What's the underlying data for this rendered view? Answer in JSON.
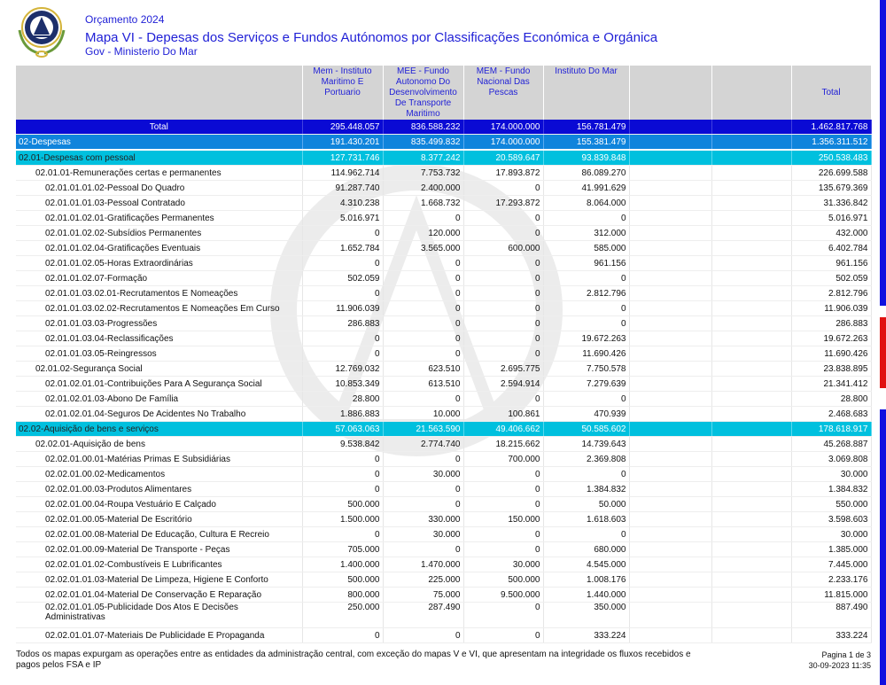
{
  "header": {
    "year": "Orçamento 2024",
    "title": "Mapa VI - Depesas dos Serviços e Fundos Autónomos por Classificações Económica e Orgánica",
    "subtitle": "Gov - Ministerio Do Mar"
  },
  "columns": [
    "",
    "Mem - Instituto Maritimo E Portuario",
    "MEE - Fundo Autonomo Do Desenvolvimento De Transporte Maritimo",
    "MEM - Fundo Nacional Das Pescas",
    "Instituto Do Mar",
    "",
    "",
    "Total"
  ],
  "rows": [
    {
      "level": 0,
      "label": "Total",
      "values": [
        "295.448.057",
        "836.588.232",
        "174.000.000",
        "156.781.479",
        "",
        "",
        "1.462.817.768"
      ]
    },
    {
      "level": 1,
      "label": "02-Despesas",
      "values": [
        "191.430.201",
        "835.499.832",
        "174.000.000",
        "155.381.479",
        "",
        "",
        "1.356.311.512"
      ]
    },
    {
      "level": 2,
      "label": "02.01-Despesas com pessoal",
      "values": [
        "127.731.746",
        "8.377.242",
        "20.589.647",
        "93.839.848",
        "",
        "",
        "250.538.483"
      ]
    },
    {
      "level": 3,
      "label": "02.01.01-Remunerações certas e permanentes",
      "values": [
        "114.962.714",
        "7.753.732",
        "17.893.872",
        "86.089.270",
        "",
        "",
        "226.699.588"
      ]
    },
    {
      "level": 4,
      "label": "02.01.01.01.02-Pessoal Do Quadro",
      "values": [
        "91.287.740",
        "2.400.000",
        "0",
        "41.991.629",
        "",
        "",
        "135.679.369"
      ]
    },
    {
      "level": 4,
      "label": "02.01.01.01.03-Pessoal Contratado",
      "values": [
        "4.310.238",
        "1.668.732",
        "17.293.872",
        "8.064.000",
        "",
        "",
        "31.336.842"
      ]
    },
    {
      "level": 4,
      "label": "02.01.01.02.01-Gratificações Permanentes",
      "values": [
        "5.016.971",
        "0",
        "0",
        "0",
        "",
        "",
        "5.016.971"
      ]
    },
    {
      "level": 4,
      "label": "02.01.01.02.02-Subsídios Permanentes",
      "values": [
        "0",
        "120.000",
        "0",
        "312.000",
        "",
        "",
        "432.000"
      ]
    },
    {
      "level": 4,
      "label": "02.01.01.02.04-Gratificações Eventuais",
      "values": [
        "1.652.784",
        "3.565.000",
        "600.000",
        "585.000",
        "",
        "",
        "6.402.784"
      ]
    },
    {
      "level": 4,
      "label": "02.01.01.02.05-Horas Extraordinárias",
      "values": [
        "0",
        "0",
        "0",
        "961.156",
        "",
        "",
        "961.156"
      ]
    },
    {
      "level": 4,
      "label": "02.01.01.02.07-Formação",
      "values": [
        "502.059",
        "0",
        "0",
        "0",
        "",
        "",
        "502.059"
      ]
    },
    {
      "level": 4,
      "label": "02.01.01.03.02.01-Recrutamentos E Nomeações",
      "values": [
        "0",
        "0",
        "0",
        "2.812.796",
        "",
        "",
        "2.812.796"
      ]
    },
    {
      "level": 4,
      "label": "02.01.01.03.02.02-Recrutamentos E Nomeações Em Curso",
      "values": [
        "11.906.039",
        "0",
        "0",
        "0",
        "",
        "",
        "11.906.039"
      ]
    },
    {
      "level": 4,
      "label": "02.01.01.03.03-Progressões",
      "values": [
        "286.883",
        "0",
        "0",
        "0",
        "",
        "",
        "286.883"
      ]
    },
    {
      "level": 4,
      "label": "02.01.01.03.04-Reclassificações",
      "values": [
        "0",
        "0",
        "0",
        "19.672.263",
        "",
        "",
        "19.672.263"
      ]
    },
    {
      "level": 4,
      "label": "02.01.01.03.05-Reingressos",
      "values": [
        "0",
        "0",
        "0",
        "11.690.426",
        "",
        "",
        "11.690.426"
      ]
    },
    {
      "level": 3,
      "label": "02.01.02-Segurança Social",
      "values": [
        "12.769.032",
        "623.510",
        "2.695.775",
        "7.750.578",
        "",
        "",
        "23.838.895"
      ]
    },
    {
      "level": 4,
      "label": "02.01.02.01.01-Contribuições Para A Segurança Social",
      "values": [
        "10.853.349",
        "613.510",
        "2.594.914",
        "7.279.639",
        "",
        "",
        "21.341.412"
      ]
    },
    {
      "level": 4,
      "label": "02.01.02.01.03-Abono De Família",
      "values": [
        "28.800",
        "0",
        "0",
        "0",
        "",
        "",
        "28.800"
      ]
    },
    {
      "level": 4,
      "label": "02.01.02.01.04-Seguros De Acidentes No Trabalho",
      "values": [
        "1.886.883",
        "10.000",
        "100.861",
        "470.939",
        "",
        "",
        "2.468.683"
      ]
    },
    {
      "level": 2,
      "label": "02.02-Aquisição de bens e serviços",
      "values": [
        "57.063.063",
        "21.563.590",
        "49.406.662",
        "50.585.602",
        "",
        "",
        "178.618.917"
      ]
    },
    {
      "level": 3,
      "label": "02.02.01-Aquisição de bens",
      "values": [
        "9.538.842",
        "2.774.740",
        "18.215.662",
        "14.739.643",
        "",
        "",
        "45.268.887"
      ]
    },
    {
      "level": 4,
      "label": "02.02.01.00.01-Matérias Primas E Subsidiárias",
      "values": [
        "0",
        "0",
        "700.000",
        "2.369.808",
        "",
        "",
        "3.069.808"
      ]
    },
    {
      "level": 4,
      "label": "02.02.01.00.02-Medicamentos",
      "values": [
        "0",
        "30.000",
        "0",
        "0",
        "",
        "",
        "30.000"
      ]
    },
    {
      "level": 4,
      "label": "02.02.01.00.03-Produtos Alimentares",
      "values": [
        "0",
        "0",
        "0",
        "1.384.832",
        "",
        "",
        "1.384.832"
      ]
    },
    {
      "level": 4,
      "label": "02.02.01.00.04-Roupa  Vestuário E Calçado",
      "values": [
        "500.000",
        "0",
        "0",
        "50.000",
        "",
        "",
        "550.000"
      ]
    },
    {
      "level": 4,
      "label": "02.02.01.00.05-Material De Escritório",
      "values": [
        "1.500.000",
        "330.000",
        "150.000",
        "1.618.603",
        "",
        "",
        "3.598.603"
      ]
    },
    {
      "level": 4,
      "label": "02.02.01.00.08-Material De Educação, Cultura E Recreio",
      "values": [
        "0",
        "30.000",
        "0",
        "0",
        "",
        "",
        "30.000"
      ]
    },
    {
      "level": 4,
      "label": "02.02.01.00.09-Material De Transporte - Peças",
      "values": [
        "705.000",
        "0",
        "0",
        "680.000",
        "",
        "",
        "1.385.000"
      ]
    },
    {
      "level": 4,
      "label": "02.02.01.01.02-Combustíveis E Lubrificantes",
      "values": [
        "1.400.000",
        "1.470.000",
        "30.000",
        "4.545.000",
        "",
        "",
        "7.445.000"
      ]
    },
    {
      "level": 4,
      "label": "02.02.01.01.03-Material De Limpeza, Higiene E Conforto",
      "values": [
        "500.000",
        "225.000",
        "500.000",
        "1.008.176",
        "",
        "",
        "2.233.176"
      ]
    },
    {
      "level": 4,
      "label": "02.02.01.01.04-Material De Conservação E Reparação",
      "values": [
        "800.000",
        "75.000",
        "9.500.000",
        "1.440.000",
        "",
        "",
        "11.815.000"
      ]
    },
    {
      "level": 4,
      "label": "02.02.01.01.05-Publicidade Dos Atos E Decisões Administrativas",
      "values": [
        "250.000",
        "287.490",
        "0",
        "350.000",
        "",
        "",
        "887.490"
      ],
      "wrap": true
    },
    {
      "level": 4,
      "label": "02.02.01.01.07-Materiais De Publicidade E Propaganda",
      "values": [
        "0",
        "0",
        "0",
        "333.224",
        "",
        "",
        "333.224"
      ]
    }
  ],
  "footer": {
    "note": "Todos os mapas expurgam as operações entre as entidades da administração central, com exceção do mapas V e VI, que apresentam na integridade os fluxos recebidos e pagos pelos FSA e IP",
    "page": "Pagina 1 de 3",
    "datetime": "30-09-2023 11:35"
  },
  "colors": {
    "total": "#0a0ad4",
    "group": "#0f84dc",
    "subgroup": "#00c0de",
    "header": "#d4d4d4",
    "title": "#1f1fd6"
  }
}
